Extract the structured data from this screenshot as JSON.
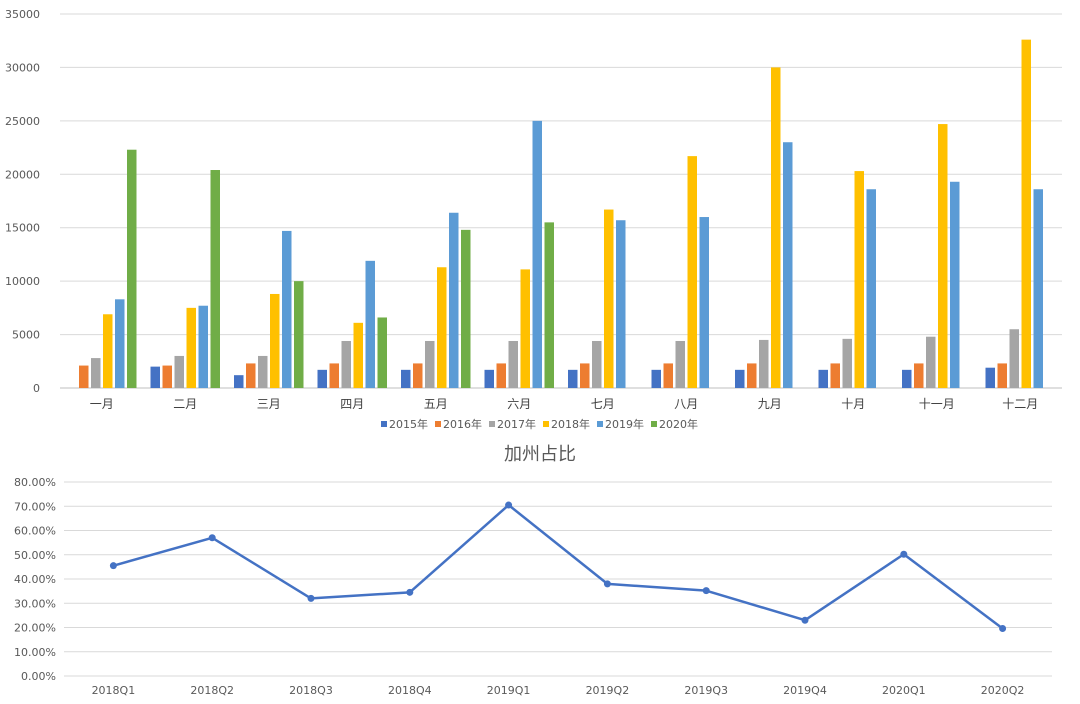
{
  "colors": {
    "s2015": "#4472C4",
    "s2016": "#ED7D31",
    "s2017": "#A5A5A5",
    "s2018": "#FFC000",
    "s2019": "#5B9BD5",
    "s2020": "#70AD47",
    "line": "#4472C4",
    "grid": "#D9D9D9"
  },
  "chart_data": [
    {
      "type": "bar",
      "title": "",
      "categories": [
        "一月",
        "二月",
        "三月",
        "四月",
        "五月",
        "六月",
        "七月",
        "八月",
        "九月",
        "十月",
        "十一月",
        "十二月"
      ],
      "ylim": [
        0,
        35000
      ],
      "yticks": [
        "0",
        "5000",
        "10000",
        "15000",
        "20000",
        "25000",
        "30000",
        "35000"
      ],
      "grid": true,
      "legend": "bottom",
      "series": [
        {
          "name": "2015年",
          "values": [
            null,
            2000,
            1200,
            1700,
            1700,
            1700,
            1700,
            1700,
            1700,
            1700,
            1700,
            1900
          ]
        },
        {
          "name": "2016年",
          "values": [
            2100,
            2100,
            2300,
            2300,
            2300,
            2300,
            2300,
            2300,
            2300,
            2300,
            2300,
            2300
          ]
        },
        {
          "name": "2017年",
          "values": [
            2800,
            3000,
            3000,
            4400,
            4400,
            4400,
            4400,
            4400,
            4500,
            4600,
            4800,
            5500
          ]
        },
        {
          "name": "2018年",
          "values": [
            6900,
            7500,
            8800,
            6100,
            11300,
            11100,
            16700,
            21700,
            30000,
            20300,
            24700,
            32600
          ]
        },
        {
          "name": "2019年",
          "values": [
            8300,
            7700,
            14700,
            11900,
            16400,
            25000,
            15700,
            16000,
            23000,
            18600,
            19300,
            18600
          ]
        },
        {
          "name": "2020年",
          "values": [
            22300,
            20400,
            10000,
            6600,
            14800,
            15500,
            null,
            null,
            null,
            null,
            null,
            null
          ]
        }
      ]
    },
    {
      "type": "line",
      "title": "加州占比",
      "categories": [
        "2018Q1",
        "2018Q2",
        "2018Q3",
        "2018Q4",
        "2019Q1",
        "2019Q2",
        "2019Q3",
        "2019Q4",
        "2020Q1",
        "2020Q2"
      ],
      "values": [
        45.5,
        57.0,
        32.0,
        34.5,
        70.5,
        38.0,
        35.2,
        23.0,
        50.2,
        19.6
      ],
      "ylim": [
        0,
        80
      ],
      "yticks": [
        "0.00%",
        "10.00%",
        "20.00%",
        "30.00%",
        "40.00%",
        "50.00%",
        "60.00%",
        "70.00%",
        "80.00%"
      ],
      "grid": true
    }
  ]
}
